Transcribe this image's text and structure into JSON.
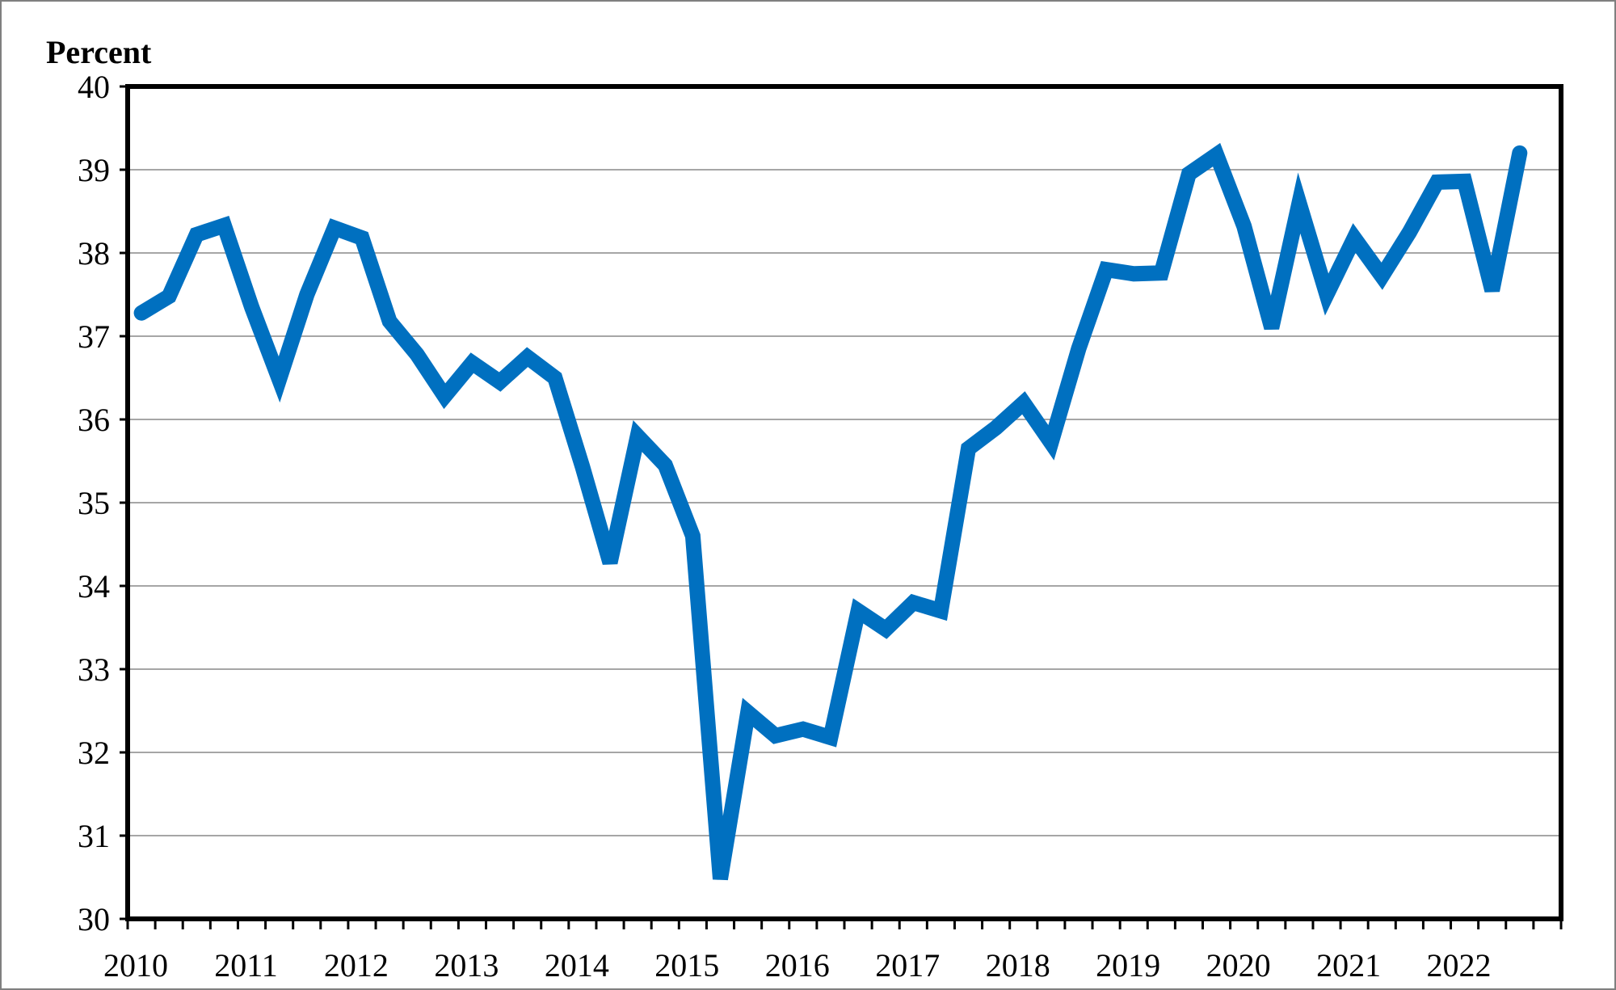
{
  "chart_data": {
    "type": "line",
    "title": "",
    "ylabel": "Percent",
    "xlabel": "",
    "ylim": [
      30,
      40
    ],
    "y_ticks": [
      30,
      31,
      32,
      33,
      34,
      35,
      36,
      37,
      38,
      39,
      40
    ],
    "y_tick_labels": [
      "30",
      "31",
      "32",
      "33",
      "34",
      "35",
      "36",
      "37",
      "38",
      "39",
      "40"
    ],
    "x_tick_labels": [
      "2010",
      "2011",
      "2012",
      "2013",
      "2014",
      "2015",
      "2016",
      "2017",
      "2018",
      "2019",
      "2020",
      "2021",
      "2022"
    ],
    "grid": "horizontal",
    "legend": "none",
    "line_color": "#0070C0",
    "series": [
      {
        "values": [
          37.28,
          37.48,
          38.22,
          38.33,
          37.35,
          36.48,
          37.5,
          38.3,
          38.18,
          37.18,
          36.78,
          36.28,
          36.68,
          36.45,
          36.75,
          36.5,
          35.43,
          34.28,
          35.8,
          35.45,
          34.6,
          30.48,
          32.48,
          32.2,
          32.28,
          32.18,
          33.7,
          33.48,
          33.8,
          33.7,
          35.65,
          35.9,
          36.2,
          35.72,
          36.85,
          37.8,
          37.75,
          37.76,
          38.95,
          39.18,
          38.32,
          37.1,
          38.6,
          37.5,
          38.18,
          37.72,
          38.25,
          38.85,
          38.86,
          37.55,
          39.2
        ]
      }
    ]
  }
}
